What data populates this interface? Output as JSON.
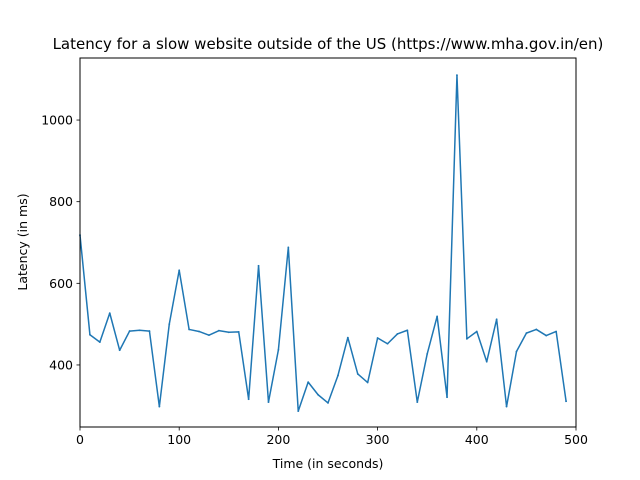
{
  "chart_data": {
    "type": "line",
    "title": "Latency for a slow website outside of the US (https://www.mha.gov.in/en)",
    "xlabel": "Time (in seconds)",
    "ylabel": "Latency (in ms)",
    "xlim": [
      0,
      500
    ],
    "ylim": [
      248,
      1152
    ],
    "xticks": [
      0,
      100,
      200,
      300,
      400,
      500
    ],
    "yticks": [
      400,
      600,
      800,
      1000
    ],
    "grid": false,
    "series": [
      {
        "color": "#1f77b4",
        "x": [
          0,
          10,
          20,
          30,
          40,
          50,
          60,
          70,
          80,
          90,
          100,
          110,
          120,
          130,
          140,
          150,
          160,
          170,
          180,
          190,
          200,
          210,
          220,
          230,
          240,
          250,
          260,
          270,
          280,
          290,
          300,
          310,
          320,
          330,
          340,
          350,
          360,
          370,
          380,
          390,
          400,
          410,
          420,
          430,
          440,
          450,
          460,
          470,
          480,
          490
        ],
        "y": [
          718,
          474,
          456,
          527,
          436,
          483,
          485,
          483,
          298,
          500,
          632,
          487,
          482,
          473,
          484,
          480,
          481,
          316,
          643,
          309,
          437,
          688,
          287,
          358,
          327,
          307,
          374,
          467,
          378,
          357,
          466,
          452,
          476,
          485,
          309,
          427,
          519,
          321,
          1110,
          464,
          482,
          408,
          512,
          298,
          433,
          478,
          487,
          472,
          482,
          311
        ]
      }
    ]
  }
}
